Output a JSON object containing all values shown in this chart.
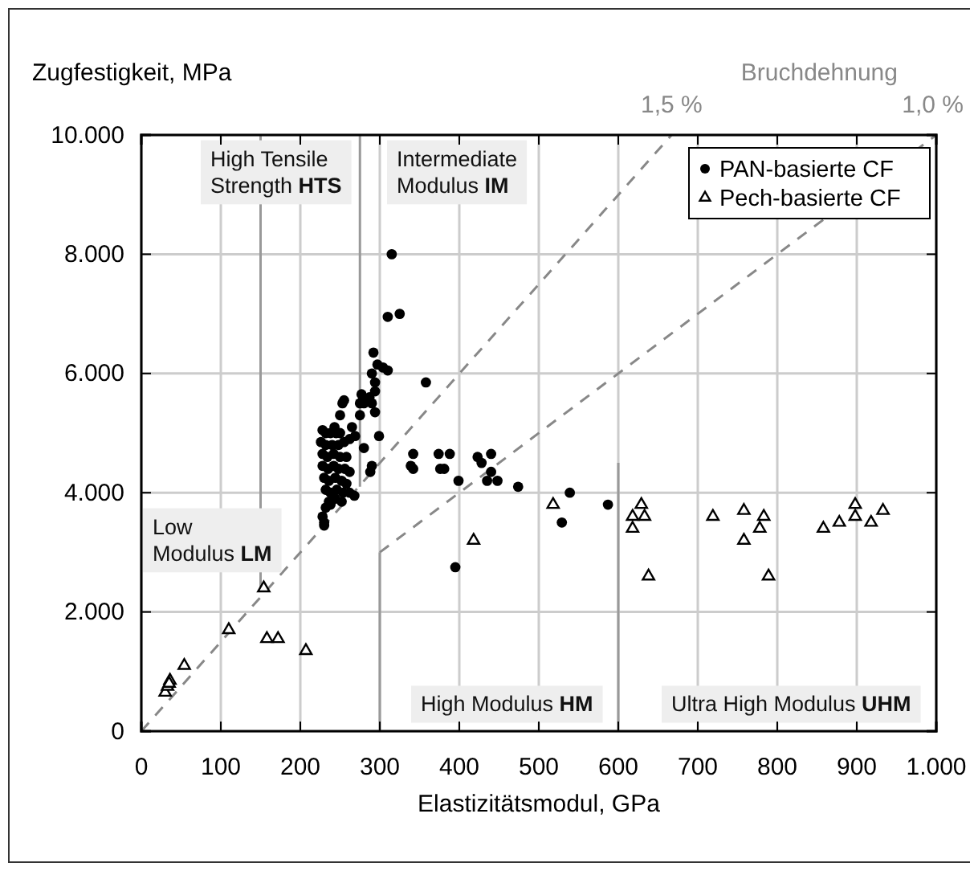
{
  "chart_data": {
    "type": "scatter",
    "ylabel": "Zugfestigkeit, MPa",
    "xlabel": "Elastizitätsmodul, GPa",
    "xlim": [
      0,
      1000
    ],
    "ylim": [
      0,
      10000
    ],
    "xticks": [
      0,
      100,
      200,
      300,
      400,
      500,
      600,
      700,
      800,
      900,
      {
        "value": 1000,
        "label": "1.000"
      }
    ],
    "yticks": [
      0,
      {
        "value": 2000,
        "label": "2.000"
      },
      {
        "value": 4000,
        "label": "4.000"
      },
      {
        "value": 6000,
        "label": "6.000"
      },
      {
        "value": 8000,
        "label": "8.000"
      },
      {
        "value": 10000,
        "label": "10.000"
      }
    ],
    "grid": true,
    "legend": "top right",
    "annotations": [
      "Bruchdehnung",
      {
        "text": "1,5 %",
        "x": 667,
        "y": 10000
      },
      {
        "text": "1,0 %",
        "x": 1000,
        "y": 10000
      },
      "High Tensile\nStrength HTS",
      "Intermediate\nModulus IM",
      "Low\nModulus LM",
      "High Modulus HM",
      "Ultra High Modulus UHM"
    ],
    "series": [
      {
        "type": "line",
        "color": "#888888",
        "line_style": "dashed",
        "x": [
          0,
          667
        ],
        "values": [
          0,
          10000
        ]
      },
      {
        "type": "line",
        "color": "#888888",
        "line_style": "dashed",
        "x": [
          300,
          1000
        ],
        "values": [
          3000,
          10000
        ]
      },
      {
        "type": "line",
        "color": "#999999",
        "line_style": "solid",
        "x": [
          150,
          150
        ],
        "values": [
          2400,
          10000
        ]
      },
      {
        "type": "line",
        "color": "#999999",
        "line_style": "solid",
        "x": [
          275,
          275
        ],
        "values": [
          4100,
          10000
        ]
      },
      {
        "type": "line",
        "color": "#999999",
        "line_style": "solid",
        "x": [
          300,
          300
        ],
        "values": [
          0,
          3000
        ]
      },
      {
        "type": "line",
        "color": "#999999",
        "line_style": "solid",
        "x": [
          600,
          600
        ],
        "values": [
          0,
          4500
        ]
      },
      {
        "name": "PAN-basierte CF",
        "color": "#000000",
        "marker": "circle",
        "x": [
          315,
          310,
          325,
          292,
          297,
          304,
          310,
          290,
          294,
          294,
          287,
          277,
          280,
          255,
          253,
          250,
          275,
          275,
          290,
          294,
          358,
          243,
          265,
          269,
          299,
          280,
          290,
          288,
          342,
          339,
          342,
          374,
          388,
          376,
          381,
          399,
          423,
          428,
          440,
          440,
          435,
          448,
          474,
          539,
          529,
          587,
          395,
          230,
          230,
          232,
          238,
          228,
          232,
          238,
          245,
          250,
          226,
          232,
          240,
          248,
          255,
          262,
          228,
          234,
          242,
          250,
          258,
          228,
          235,
          242,
          248,
          256,
          262,
          230,
          236,
          244,
          252,
          258,
          232,
          238,
          246,
          254,
          262,
          268,
          236,
          244,
          252,
          228
        ],
        "values": [
          8000,
          6950,
          7000,
          6350,
          6150,
          6100,
          6050,
          6000,
          5850,
          5700,
          5600,
          5650,
          5500,
          5550,
          5500,
          5300,
          5500,
          5300,
          5500,
          5350,
          5850,
          5100,
          5100,
          4950,
          4950,
          4750,
          4450,
          4350,
          4650,
          4450,
          4400,
          4650,
          4650,
          4400,
          4400,
          4200,
          4600,
          4500,
          4650,
          4350,
          4200,
          4200,
          4100,
          4000,
          3500,
          3800,
          2750,
          3500,
          3450,
          3750,
          3800,
          5050,
          5000,
          5000,
          5000,
          5000,
          4850,
          4800,
          4800,
          4800,
          4850,
          4900,
          4650,
          4600,
          4650,
          4600,
          4600,
          4450,
          4400,
          4450,
          4400,
          4400,
          4350,
          4250,
          4200,
          4250,
          4200,
          4150,
          4050,
          4000,
          4050,
          4000,
          4000,
          3950,
          3850,
          3900,
          3850,
          3600
        ]
      },
      {
        "name": "Pech-basierte CF",
        "color": "#000000",
        "marker": "triangle",
        "x": [
          30,
          33,
          36,
          35,
          54,
          110,
          154,
          158,
          172,
          207,
          418,
          518,
          629,
          618,
          633,
          618,
          638,
          719,
          758,
          783,
          778,
          758,
          789,
          858,
          878,
          898,
          898,
          918,
          933
        ],
        "values": [
          650,
          750,
          850,
          800,
          1100,
          1700,
          2400,
          1550,
          1550,
          1350,
          3200,
          3800,
          3800,
          3600,
          3600,
          3400,
          2600,
          3600,
          3700,
          3600,
          3400,
          3200,
          2600,
          3400,
          3500,
          3800,
          3600,
          3500,
          3700
        ]
      }
    ]
  }
}
